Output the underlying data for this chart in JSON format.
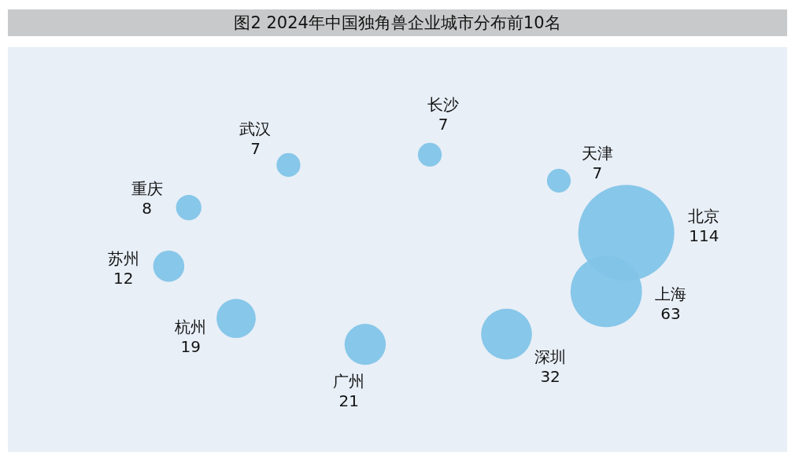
{
  "chart_data": {
    "type": "other",
    "title": "图2 2024年中国独角兽企业城市分布前10名",
    "categories": [
      "北京",
      "上海",
      "深圳",
      "广州",
      "杭州",
      "苏州",
      "重庆",
      "武汉",
      "长沙",
      "天津"
    ],
    "values": [
      114,
      63,
      32,
      21,
      19,
      12,
      8,
      7,
      7,
      7
    ],
    "color": "#82c4e8",
    "data_labels": true
  }
}
